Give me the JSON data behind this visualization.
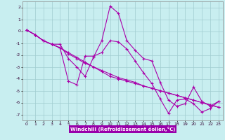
{
  "xlabel": "Windchill (Refroidissement éolien,°C)",
  "xlim": [
    -0.5,
    23.5
  ],
  "ylim": [
    -7.5,
    2.5
  ],
  "yticks": [
    -7,
    -6,
    -5,
    -4,
    -3,
    -2,
    -1,
    0,
    1,
    2
  ],
  "xticks": [
    0,
    1,
    2,
    3,
    4,
    5,
    6,
    7,
    8,
    9,
    10,
    11,
    12,
    13,
    14,
    15,
    16,
    17,
    18,
    19,
    20,
    21,
    22,
    23
  ],
  "background_color": "#c8eef0",
  "grid_color": "#a0ccd0",
  "line_color": "#aa00aa",
  "line_width": 0.8,
  "markersize": 3,
  "xlabel_bg": "#9900aa",
  "xlabel_fg": "#ffffff",
  "series": [
    [
      0.1,
      -0.3,
      -0.8,
      -1.1,
      -1.1,
      -2.3,
      -3.0,
      -3.8,
      -2.2,
      -0.8,
      2.1,
      1.5,
      -0.8,
      -1.6,
      -2.3,
      -2.5,
      -4.3,
      -5.8,
      -6.3,
      -6.1,
      -4.7,
      -5.9,
      -6.3,
      -5.9
    ],
    [
      0.1,
      -0.3,
      -0.8,
      -1.1,
      -1.4,
      -4.2,
      -4.5,
      -2.1,
      -2.1,
      -1.8,
      -0.8,
      -0.9,
      -1.5,
      -2.5,
      -3.5,
      -4.4,
      -5.7,
      -6.9,
      -5.8,
      -5.7,
      -6.1,
      -6.8,
      -6.5,
      -5.9
    ],
    [
      0.1,
      -0.3,
      -0.8,
      -1.1,
      -1.4,
      -1.8,
      -2.2,
      -2.6,
      -3.0,
      -3.4,
      -3.8,
      -4.0,
      -4.2,
      -4.4,
      -4.6,
      -4.8,
      -5.0,
      -5.2,
      -5.4,
      -5.6,
      -5.8,
      -6.0,
      -6.2,
      -6.4
    ],
    [
      0.1,
      -0.3,
      -0.8,
      -1.1,
      -1.4,
      -1.9,
      -2.3,
      -2.7,
      -3.0,
      -3.3,
      -3.6,
      -3.9,
      -4.1,
      -4.3,
      -4.6,
      -4.8,
      -5.0,
      -5.2,
      -5.4,
      -5.6,
      -5.8,
      -6.0,
      -6.2,
      -6.4
    ]
  ]
}
